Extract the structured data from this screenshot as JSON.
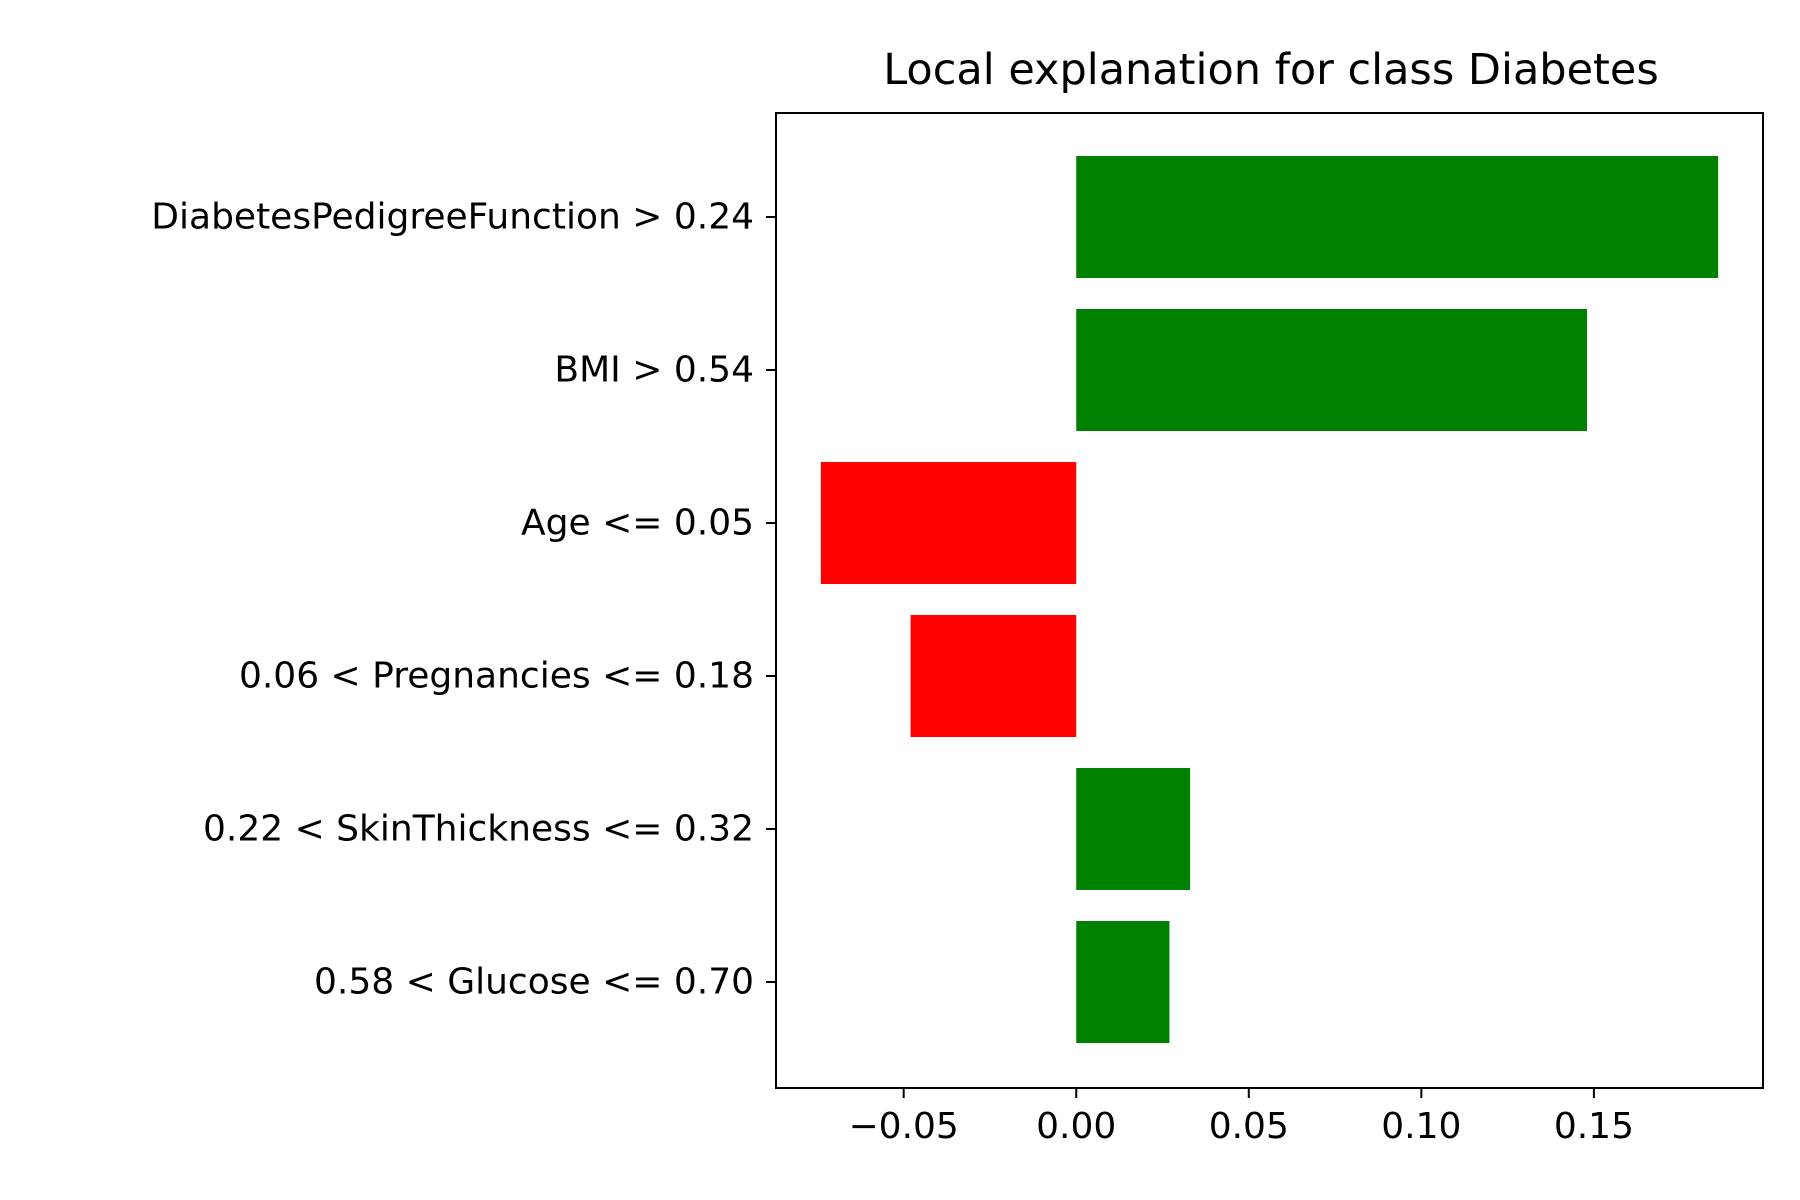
{
  "chart_data": {
    "type": "bar",
    "orientation": "horizontal",
    "title": "Local explanation for class Diabetes",
    "xlabel": "",
    "ylabel": "",
    "categories": [
      "DiabetesPedigreeFunction > 0.24",
      "BMI > 0.54",
      "Age <= 0.05",
      "0.06 < Pregnancies <= 0.18",
      "0.22 < SkinThickness <= 0.32",
      "0.58 < Glucose <= 0.70"
    ],
    "values": [
      0.186,
      0.148,
      -0.074,
      -0.048,
      0.033,
      0.027
    ],
    "xlim": [
      -0.087,
      0.199
    ],
    "xticks": [
      -0.05,
      0.0,
      0.05,
      0.1,
      0.15
    ],
    "xtick_labels": [
      "−0.05",
      "0.00",
      "0.05",
      "0.10",
      "0.15"
    ],
    "grid": false,
    "colors": {
      "positive": "#008000",
      "negative": "#ff0000",
      "axes": "#000000"
    }
  }
}
